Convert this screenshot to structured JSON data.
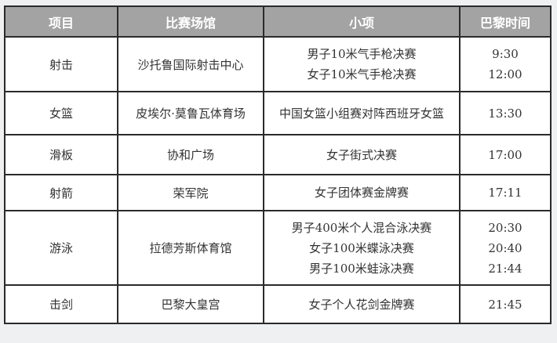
{
  "headers": [
    "项目",
    "比赛场馆",
    "小项",
    "巴黎时间"
  ],
  "rows": [
    {
      "sport": "射击",
      "venue": "沙托鲁国际射击中心",
      "events": [
        "男子10米气手枪决赛",
        "女子10米气手枪决赛"
      ],
      "times": [
        "9:30",
        "12:00"
      ]
    },
    {
      "sport": "女篮",
      "venue": "皮埃尔·莫鲁瓦体育场",
      "events": [
        "中国女篮小组赛对阵西班牙女篮"
      ],
      "times": [
        "13:30"
      ]
    },
    {
      "sport": "滑板",
      "venue": "协和广场",
      "events": [
        "女子街式决赛"
      ],
      "times": [
        "17:00"
      ]
    },
    {
      "sport": "射箭",
      "venue": "荣军院",
      "events": [
        "女子团体赛金牌赛"
      ],
      "times": [
        "17:11"
      ]
    },
    {
      "sport": "游泳",
      "venue": "拉德芳斯体育馆",
      "events": [
        "男子400米个人混合泳决赛",
        "女子100米蝶泳决赛",
        "男子100米蛙泳决赛"
      ],
      "times": [
        "20:30",
        "20:40",
        "21:44"
      ]
    },
    {
      "sport": "击剑",
      "venue": "巴黎大皇宫",
      "events": [
        "女子个人花剑金牌赛"
      ],
      "times": [
        "21:45"
      ]
    }
  ]
}
